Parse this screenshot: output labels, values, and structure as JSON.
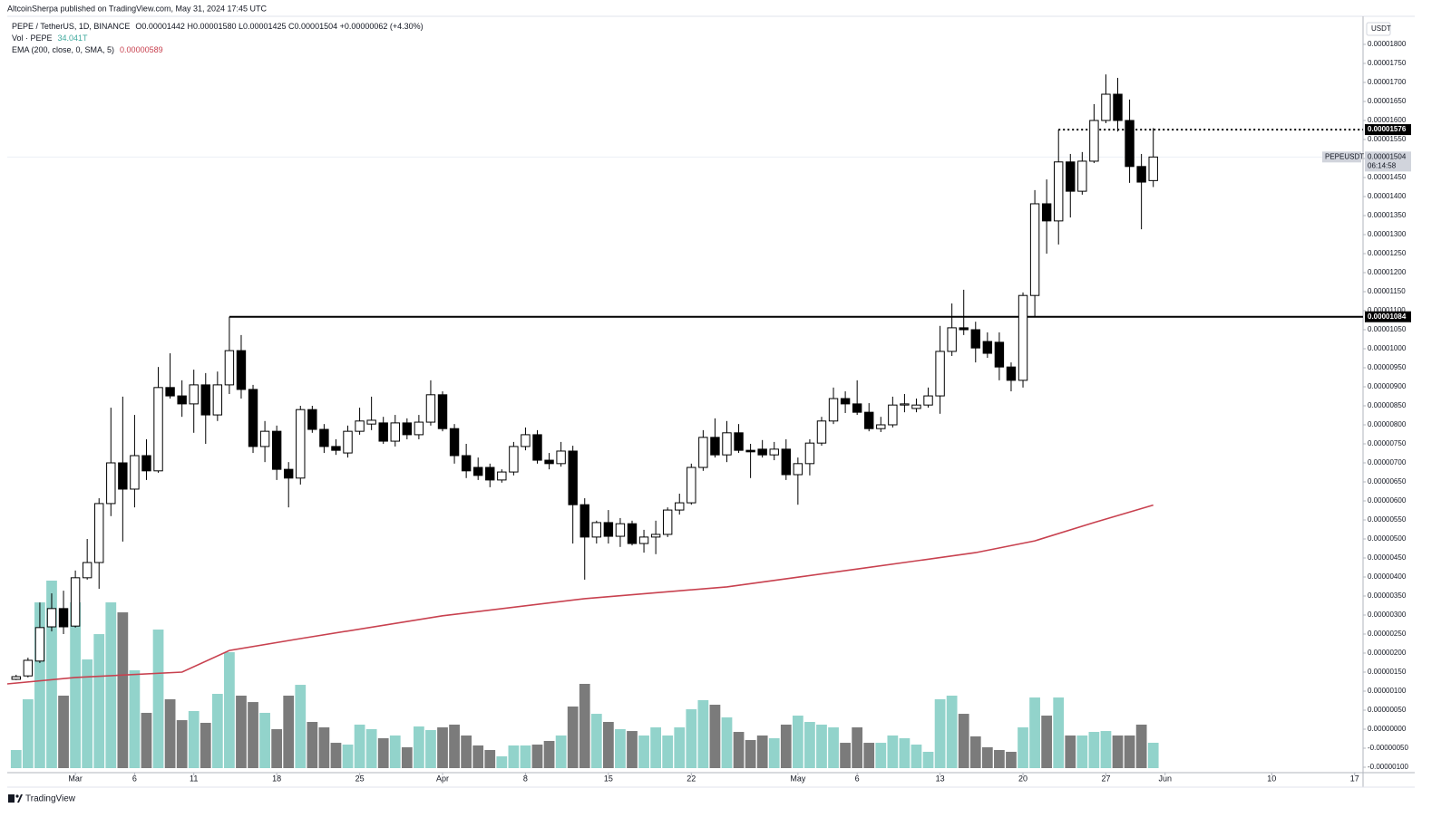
{
  "header": {
    "published": "AltcoinSherpa published on TradingView.com, May 31, 2024 17:45 UTC",
    "brand": "TradingView"
  },
  "chart_data": {
    "type": "candlestick",
    "axis_unit": "USDT",
    "legend": {
      "symbol": "PEPE / TetherUS, 1D, BINANCE",
      "ohlc": "O0.00001442 H0.00001580 L0.00001425 C0.00001504 +0.00000062 (+4.30%)",
      "volume_name": "Vol · PEPE",
      "volume_value": "34.041T",
      "ema_value": "0.00000589"
    },
    "last_price": {
      "label": "0.00001504",
      "countdown": "06:14:58",
      "tag": "PEPEUSDT"
    },
    "colors": {
      "up": "#ffffff",
      "down": "#000000",
      "outline": "#000000",
      "volume_up": "#92d3cb",
      "volume_down": "#7b7b7b"
    },
    "grid": false,
    "x": [
      "2024-02-25",
      "2024-02-26",
      "2024-02-27",
      "2024-02-28",
      "2024-02-29",
      "2024-03-01",
      "2024-03-02",
      "2024-03-03",
      "2024-03-04",
      "2024-03-05",
      "2024-03-06",
      "2024-03-07",
      "2024-03-08",
      "2024-03-09",
      "2024-03-10",
      "2024-03-11",
      "2024-03-12",
      "2024-03-13",
      "2024-03-14",
      "2024-03-15",
      "2024-03-16",
      "2024-03-17",
      "2024-03-18",
      "2024-03-19",
      "2024-03-20",
      "2024-03-21",
      "2024-03-22",
      "2024-03-23",
      "2024-03-24",
      "2024-03-25",
      "2024-03-26",
      "2024-03-27",
      "2024-03-28",
      "2024-03-29",
      "2024-03-30",
      "2024-03-31",
      "2024-04-01",
      "2024-04-02",
      "2024-04-03",
      "2024-04-04",
      "2024-04-05",
      "2024-04-06",
      "2024-04-07",
      "2024-04-08",
      "2024-04-09",
      "2024-04-10",
      "2024-04-11",
      "2024-04-12",
      "2024-04-13",
      "2024-04-14",
      "2024-04-15",
      "2024-04-16",
      "2024-04-17",
      "2024-04-18",
      "2024-04-19",
      "2024-04-20",
      "2024-04-21",
      "2024-04-22",
      "2024-04-23",
      "2024-04-24",
      "2024-04-25",
      "2024-04-26",
      "2024-04-27",
      "2024-04-28",
      "2024-04-29",
      "2024-04-30",
      "2024-05-01",
      "2024-05-02",
      "2024-05-03",
      "2024-05-04",
      "2024-05-05",
      "2024-05-06",
      "2024-05-07",
      "2024-05-08",
      "2024-05-09",
      "2024-05-10",
      "2024-05-11",
      "2024-05-12",
      "2024-05-13",
      "2024-05-14",
      "2024-05-15",
      "2024-05-16",
      "2024-05-17",
      "2024-05-18",
      "2024-05-19",
      "2024-05-20",
      "2024-05-21",
      "2024-05-22",
      "2024-05-23",
      "2024-05-24",
      "2024-05-25",
      "2024-05-26",
      "2024-05-27",
      "2024-05-28",
      "2024-05-29",
      "2024-05-30",
      "2024-05-31"
    ],
    "open": [
      1.31e-06,
      1.4e-06,
      1.79e-06,
      2.69e-06,
      3.17e-06,
      2.71e-06,
      3.98e-06,
      4.38e-06,
      5.93e-06,
      7e-06,
      6.31e-06,
      7.19e-06,
      6.79e-06,
      8.98e-06,
      8.76e-06,
      8.55e-06,
      9.05e-06,
      8.26e-06,
      9.05e-06,
      9.95e-06,
      8.93e-06,
      7.43e-06,
      7.83e-06,
      6.83e-06,
      6.6e-06,
      8.4e-06,
      7.88e-06,
      7.43e-06,
      7.26e-06,
      7.83e-06,
      8.02e-06,
      8.05e-06,
      7.57e-06,
      8.05e-06,
      7.74e-06,
      8.07e-06,
      8.79e-06,
      7.9e-06,
      7.19e-06,
      6.88e-06,
      6.88e-06,
      6.55e-06,
      6.76e-06,
      7.43e-06,
      7.74e-06,
      7.07e-06,
      6.98e-06,
      7.31e-06,
      5.9e-06,
      5.05e-06,
      5.43e-06,
      5.07e-06,
      5.4e-06,
      4.88e-06,
      5.05e-06,
      5.12e-06,
      5.76e-06,
      5.95e-06,
      6.88e-06,
      7.67e-06,
      7.21e-06,
      7.79e-06,
      7.33e-06,
      7.36e-06,
      7.21e-06,
      7.36e-06,
      6.69e-06,
      6.98e-06,
      7.52e-06,
      8.1e-06,
      8.69e-06,
      8.55e-06,
      8.33e-06,
      7.9e-06,
      8e-06,
      8.52e-06,
      8.43e-06,
      8.52e-06,
      8.76e-06,
      9.93e-06,
      1.055e-05,
      1.05e-05,
      1.019e-05,
      1.017e-05,
      9.52e-06,
      9.17e-06,
      1.14e-05,
      1.381e-05,
      1.336e-05,
      1.491e-05,
      1.414e-05,
      1.493e-05,
      1.6e-05,
      1.669e-05,
      1.6e-05,
      1.479e-05,
      1.442e-05
    ],
    "high": [
      1.43e-06,
      1.88e-06,
      3.33e-06,
      3.57e-06,
      3.64e-06,
      4.17e-06,
      5e-06,
      6.07e-06,
      8.45e-06,
      8.74e-06,
      8.26e-06,
      7.62e-06,
      9.52e-06,
      9.88e-06,
      9.17e-06,
      9.45e-06,
      9.36e-06,
      9.4e-06,
      1.084e-05,
      1.036e-05,
      9.05e-06,
      8.1e-06,
      7.98e-06,
      7.02e-06,
      8.5e-06,
      8.5e-06,
      8.02e-06,
      7.62e-06,
      7.98e-06,
      8.45e-06,
      8.74e-06,
      8.21e-06,
      8.26e-06,
      8.17e-06,
      8.26e-06,
      9.17e-06,
      8.88e-06,
      8.02e-06,
      7.5e-06,
      7.14e-06,
      6.98e-06,
      6.83e-06,
      7.55e-06,
      7.93e-06,
      7.86e-06,
      7.26e-06,
      7.55e-06,
      7.45e-06,
      6.07e-06,
      5.48e-06,
      5.76e-06,
      5.55e-06,
      5.48e-06,
      5.24e-06,
      5.48e-06,
      5.83e-06,
      6.19e-06,
      6.98e-06,
      7.86e-06,
      8.17e-06,
      8.1e-06,
      8.02e-06,
      7.5e-06,
      7.6e-06,
      7.55e-06,
      7.62e-06,
      7.14e-06,
      7.62e-06,
      8.21e-06,
      8.98e-06,
      8.88e-06,
      9.17e-06,
      8.57e-06,
      8.21e-06,
      8.74e-06,
      8.81e-06,
      8.69e-06,
      8.98e-06,
      1.06e-05,
      1.119e-05,
      1.155e-05,
      1.071e-05,
      1.043e-05,
      1.043e-05,
      9.64e-06,
      1.148e-05,
      1.417e-05,
      1.445e-05,
      1.576e-05,
      1.512e-05,
      1.517e-05,
      1.643e-05,
      1.721e-05,
      1.712e-05,
      1.655e-05,
      1.512e-05,
      1.58e-05
    ],
    "low": [
      1.29e-06,
      1.36e-06,
      1.74e-06,
      2.57e-06,
      2.5e-06,
      2.67e-06,
      3.93e-06,
      3.69e-06,
      5.6e-06,
      4.93e-06,
      5.83e-06,
      6.55e-06,
      6.74e-06,
      8.69e-06,
      8.21e-06,
      7.79e-06,
      7.5e-06,
      8.1e-06,
      8.81e-06,
      8.69e-06,
      7.26e-06,
      7.02e-06,
      6.55e-06,
      5.83e-06,
      6.43e-06,
      7.79e-06,
      7.26e-06,
      7.21e-06,
      7.14e-06,
      7.74e-06,
      7.86e-06,
      7.5e-06,
      7.43e-06,
      7.62e-06,
      7.62e-06,
      7.98e-06,
      7.83e-06,
      6.98e-06,
      6.6e-06,
      6.55e-06,
      6.36e-06,
      6.48e-06,
      6.67e-06,
      7.33e-06,
      6.98e-06,
      6.83e-06,
      6.9e-06,
      4.88e-06,
      3.93e-06,
      4.88e-06,
      4.88e-06,
      4.79e-06,
      4.83e-06,
      4.64e-06,
      4.6e-06,
      5.05e-06,
      5.64e-06,
      5.9e-06,
      6.79e-06,
      7.14e-06,
      7.02e-06,
      7.26e-06,
      6.6e-06,
      7.14e-06,
      7.07e-06,
      6.55e-06,
      5.9e-06,
      6.67e-06,
      7.45e-06,
      8.02e-06,
      8.31e-06,
      8.26e-06,
      7.83e-06,
      7.81e-06,
      7.93e-06,
      8.33e-06,
      8.33e-06,
      8.45e-06,
      8.29e-06,
      9.81e-06,
      1.036e-05,
      9.64e-06,
      9.76e-06,
      9.17e-06,
      8.88e-06,
      8.98e-06,
      1.083e-05,
      1.25e-05,
      1.274e-05,
      1.345e-05,
      1.405e-05,
      1.488e-05,
      1.593e-05,
      1.571e-05,
      1.436e-05,
      1.314e-05,
      1.425e-05
    ],
    "close": [
      1.38e-06,
      1.81e-06,
      2.67e-06,
      3.17e-06,
      2.69e-06,
      3.98e-06,
      4.38e-06,
      5.93e-06,
      7e-06,
      6.31e-06,
      7.19e-06,
      6.79e-06,
      8.98e-06,
      8.76e-06,
      8.55e-06,
      9.05e-06,
      8.26e-06,
      9.05e-06,
      9.95e-06,
      8.93e-06,
      7.43e-06,
      7.83e-06,
      6.83e-06,
      6.6e-06,
      8.4e-06,
      7.88e-06,
      7.43e-06,
      7.33e-06,
      7.83e-06,
      8.1e-06,
      8.12e-06,
      7.57e-06,
      8.05e-06,
      7.74e-06,
      8.07e-06,
      8.79e-06,
      7.9e-06,
      7.19e-06,
      6.79e-06,
      6.67e-06,
      6.55e-06,
      6.76e-06,
      7.43e-06,
      7.74e-06,
      7.07e-06,
      6.98e-06,
      7.31e-06,
      5.9e-06,
      5.05e-06,
      5.43e-06,
      5.07e-06,
      5.4e-06,
      4.88e-06,
      5.05e-06,
      5.12e-06,
      5.76e-06,
      5.95e-06,
      6.88e-06,
      7.67e-06,
      7.21e-06,
      7.79e-06,
      7.33e-06,
      7.29e-06,
      7.21e-06,
      7.36e-06,
      6.69e-06,
      6.98e-06,
      7.52e-06,
      8.1e-06,
      8.69e-06,
      8.55e-06,
      8.33e-06,
      7.9e-06,
      8e-06,
      8.52e-06,
      8.55e-06,
      8.52e-06,
      8.76e-06,
      9.93e-06,
      1.055e-05,
      1.05e-05,
      1.002e-05,
      9.88e-06,
      9.52e-06,
      9.17e-06,
      1.14e-05,
      1.381e-05,
      1.336e-05,
      1.491e-05,
      1.414e-05,
      1.493e-05,
      1.6e-05,
      1.669e-05,
      1.6e-05,
      1.479e-05,
      1.438e-05,
      1.504e-05
    ],
    "volume": [
      24.3,
      92.4,
      222.5,
      251.7,
      97.3,
      222.5,
      145.9,
      179.9,
      222.5,
      209.1,
      131.3,
      74.2,
      186.0,
      92.4,
      64.4,
      76.6,
      60.8,
      99.7,
      155.6,
      97.3,
      88.7,
      74.2,
      52.3,
      97.3,
      111.8,
      62.0,
      54.7,
      34.0,
      31.6,
      58.4,
      52.3,
      40.1,
      43.8,
      28.0,
      55.9,
      51.1,
      54.7,
      58.4,
      43.8,
      30.4,
      24.3,
      15.8,
      30.4,
      30.4,
      31.6,
      36.5,
      43.8,
      82.7,
      113.1,
      72.9,
      62.0,
      52.3,
      49.8,
      43.8,
      54.7,
      43.8,
      54.7,
      79.0,
      91.2,
      85.1,
      68.1,
      48.6,
      37.7,
      43.8,
      40.1,
      58.4,
      70.5,
      62.0,
      58.4,
      54.7,
      34.0,
      54.7,
      34.0,
      34.0,
      43.8,
      40.1,
      31.6,
      21.9,
      92.4,
      97.3,
      72.9,
      42.6,
      28.0,
      24.3,
      21.9,
      54.7,
      94.8,
      70.5,
      94.8,
      43.8,
      43.8,
      48.6,
      49.8,
      43.8,
      43.8,
      58.4,
      34.041
    ],
    "ema": {
      "name": "EMA (200, close, 0, SMA, 5)",
      "color": "#c8414f",
      "x": [
        "2024-02-24T06:00Z",
        "2024-03-01",
        "2024-03-10",
        "2024-03-14",
        "2024-03-20",
        "2024-04-01",
        "2024-04-13",
        "2024-04-25",
        "2024-05-06",
        "2024-05-16",
        "2024-05-21",
        "2024-05-26",
        "2024-05-31"
      ],
      "values": [
        1.19e-06,
        1.36e-06,
        1.5e-06,
        2.07e-06,
        2.38e-06,
        2.98e-06,
        3.43e-06,
        3.74e-06,
        4.21e-06,
        4.64e-06,
        4.95e-06,
        5.43e-06,
        5.89e-06
      ]
    },
    "levels": [
      {
        "value": 1.084e-05,
        "label": "0.00001084",
        "style": "solid",
        "from": "2024-03-14"
      },
      {
        "value": 1.576e-05,
        "label": "0.00001576",
        "style": "dotted",
        "from": "2024-05-23"
      }
    ],
    "xlim": [
      "2024-02-24T06:00Z",
      "2024-06-17T17:00Z"
    ],
    "xticks": [
      {
        "value": "2024-03-01",
        "label": "Mar"
      },
      {
        "value": "2024-03-06",
        "label": "6"
      },
      {
        "value": "2024-03-11",
        "label": "11"
      },
      {
        "value": "2024-03-18",
        "label": "18"
      },
      {
        "value": "2024-03-25",
        "label": "25"
      },
      {
        "value": "2024-04-01",
        "label": "Apr"
      },
      {
        "value": "2024-04-08",
        "label": "8"
      },
      {
        "value": "2024-04-15",
        "label": "15"
      },
      {
        "value": "2024-04-22",
        "label": "22"
      },
      {
        "value": "2024-05-01",
        "label": "May"
      },
      {
        "value": "2024-05-06",
        "label": "6"
      },
      {
        "value": "2024-05-13",
        "label": "13"
      },
      {
        "value": "2024-05-20",
        "label": "20"
      },
      {
        "value": "2024-05-27",
        "label": "27"
      },
      {
        "value": "2024-06-01",
        "label": "Jun"
      },
      {
        "value": "2024-06-10",
        "label": "10"
      },
      {
        "value": "2024-06-17",
        "label": "17"
      }
    ],
    "ylim": [
      -1.143e-06,
      1.8738e-05
    ],
    "yticks": [
      {
        "value": -1e-06,
        "label": "-0.00000100"
      },
      {
        "value": -5e-07,
        "label": "-0.00000050"
      },
      {
        "value": 0,
        "label": "0.00000000"
      },
      {
        "value": 5e-07,
        "label": "0.00000050"
      },
      {
        "value": 1e-06,
        "label": "0.00000100"
      },
      {
        "value": 1.5e-06,
        "label": "0.00000150"
      },
      {
        "value": 2e-06,
        "label": "0.00000200"
      },
      {
        "value": 2.5e-06,
        "label": "0.00000250"
      },
      {
        "value": 3e-06,
        "label": "0.00000300"
      },
      {
        "value": 3.5e-06,
        "label": "0.00000350"
      },
      {
        "value": 4e-06,
        "label": "0.00000400"
      },
      {
        "value": 4.5e-06,
        "label": "0.00000450"
      },
      {
        "value": 5e-06,
        "label": "0.00000500"
      },
      {
        "value": 5.5e-06,
        "label": "0.00000550"
      },
      {
        "value": 6e-06,
        "label": "0.00000600"
      },
      {
        "value": 6.5e-06,
        "label": "0.00000650"
      },
      {
        "value": 7e-06,
        "label": "0.00000700"
      },
      {
        "value": 7.5e-06,
        "label": "0.00000750"
      },
      {
        "value": 8e-06,
        "label": "0.00000800"
      },
      {
        "value": 8.5e-06,
        "label": "0.00000850"
      },
      {
        "value": 9e-06,
        "label": "0.00000900"
      },
      {
        "value": 9.5e-06,
        "label": "0.00000950"
      },
      {
        "value": 1e-05,
        "label": "0.00001000"
      },
      {
        "value": 1.05e-05,
        "label": "0.00001050"
      },
      {
        "value": 1.1e-05,
        "label": "0.00001100"
      },
      {
        "value": 1.15e-05,
        "label": "0.00001150"
      },
      {
        "value": 1.2e-05,
        "label": "0.00001200"
      },
      {
        "value": 1.25e-05,
        "label": "0.00001250"
      },
      {
        "value": 1.3e-05,
        "label": "0.00001300"
      },
      {
        "value": 1.35e-05,
        "label": "0.00001350"
      },
      {
        "value": 1.4e-05,
        "label": "0.00001400"
      },
      {
        "value": 1.45e-05,
        "label": "0.00001450"
      },
      {
        "value": 1.5e-05,
        "label": "0.00001500"
      },
      {
        "value": 1.55e-05,
        "label": "0.00001550"
      },
      {
        "value": 1.6e-05,
        "label": "0.00001600"
      },
      {
        "value": 1.65e-05,
        "label": "0.00001650"
      },
      {
        "value": 1.7e-05,
        "label": "0.00001700"
      },
      {
        "value": 1.75e-05,
        "label": "0.00001750"
      },
      {
        "value": 1.8e-05,
        "label": "0.00001800"
      }
    ]
  }
}
